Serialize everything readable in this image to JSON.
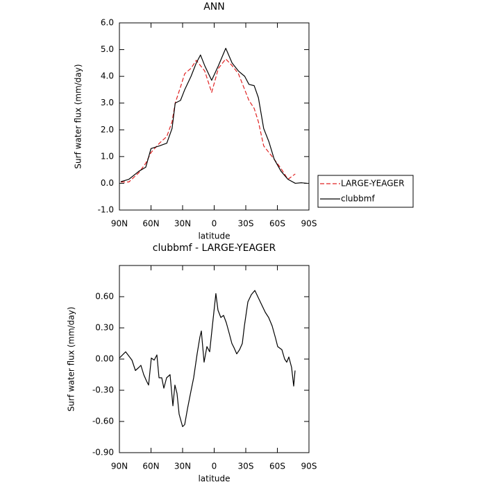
{
  "chart_data": [
    {
      "type": "line",
      "title": "ANN",
      "xlabel": "latitude",
      "ylabel": "Surf water flux (mm/day)",
      "x": [
        88.7,
        81,
        71.5,
        65,
        60,
        52,
        45,
        40,
        37,
        32,
        28,
        22,
        17,
        13,
        9,
        2.4,
        -4,
        -11,
        -17,
        -23,
        -29,
        -33,
        -38,
        -42,
        -47,
        -52,
        -57,
        -63.5,
        -70,
        -77,
        -83,
        -88
      ],
      "series": [
        {
          "name": "LARGE-YEAGER",
          "color": "#e02020",
          "linestyle": "dashed",
          "values": [
            0.05,
            0.05,
            0.4,
            0.75,
            1.15,
            1.5,
            1.75,
            2.3,
            3.0,
            3.6,
            4.1,
            4.3,
            4.6,
            4.4,
            4.2,
            3.4,
            4.3,
            4.65,
            4.4,
            4.1,
            3.5,
            3.1,
            2.8,
            2.3,
            1.4,
            1.15,
            0.9,
            0.55,
            0.15,
            0.35,
            null,
            null
          ]
        },
        {
          "name": "clubbmf",
          "color": "#000000",
          "linestyle": "solid",
          "values": [
            0.06,
            0.15,
            0.45,
            0.6,
            1.3,
            1.4,
            1.5,
            2.05,
            3.0,
            3.1,
            3.5,
            4.0,
            4.5,
            4.8,
            4.4,
            3.85,
            4.4,
            5.05,
            4.5,
            4.2,
            4.0,
            3.7,
            3.65,
            3.2,
            2.05,
            1.55,
            0.9,
            0.45,
            0.15,
            0.0,
            0.02,
            0.0
          ]
        }
      ],
      "xlim": [
        90,
        -90
      ],
      "xticks": [
        {
          "value": 90,
          "label": "90N"
        },
        {
          "value": 60,
          "label": "60N"
        },
        {
          "value": 30,
          "label": "30N"
        },
        0,
        {
          "value": -30,
          "label": "30S"
        },
        {
          "value": -60,
          "label": "60S"
        },
        {
          "value": -90,
          "label": "90S"
        }
      ],
      "ylim": [
        -1,
        6
      ],
      "yticks": [
        {
          "value": -1,
          "label": "-1.0"
        },
        {
          "value": 0,
          "label": "0.0"
        },
        {
          "value": 1,
          "label": "1.0"
        },
        {
          "value": 2,
          "label": "2.0"
        },
        {
          "value": 3,
          "label": "3.0"
        },
        {
          "value": 4,
          "label": "4.0"
        },
        {
          "value": 5,
          "label": "5.0"
        },
        {
          "value": 6,
          "label": "6.0"
        }
      ],
      "legend": "right"
    },
    {
      "type": "line",
      "title": "clubbmf - LARGE-YEAGER",
      "xlabel": "latitude",
      "ylabel": "Surf water flux (mm/day)",
      "x": [
        90,
        84.1,
        78.1,
        74.8,
        71.5,
        69.6,
        66.9,
        64.3,
        62.3,
        59.7,
        57.0,
        54.4,
        52.4,
        49.8,
        47.8,
        45.2,
        41.9,
        39.2,
        37.3,
        35.3,
        33.3,
        30.0,
        28.0,
        25.4,
        22.1,
        19.5,
        16.2,
        13.6,
        12.2,
        9.6,
        6.9,
        4.3,
        1.7,
        -1.6,
        -3.6,
        -6.3,
        -8.9,
        -11.5,
        -14.2,
        -16.8,
        -18.8,
        -21.4,
        -24.1,
        -26.7,
        -28.7,
        -32.0,
        -35.3,
        -38.6,
        -41.9,
        -45.2,
        -48.5,
        -51.7,
        -55.0,
        -58.3,
        -60.3,
        -64.3,
        -66.9,
        -68.9,
        -70.9,
        -73.5,
        -75.5,
        -76.8
      ],
      "series": [
        {
          "name": "clubbmf - LARGE-YEAGER",
          "color": "#000000",
          "linestyle": "solid",
          "values": [
            0.01,
            0.07,
            -0.01,
            -0.11,
            -0.08,
            -0.06,
            -0.15,
            -0.21,
            -0.25,
            0.01,
            -0.01,
            0.04,
            -0.18,
            -0.18,
            -0.28,
            -0.18,
            -0.15,
            -0.45,
            -0.25,
            -0.33,
            -0.53,
            -0.65,
            -0.63,
            -0.48,
            -0.31,
            -0.18,
            0.05,
            0.21,
            0.27,
            -0.03,
            0.12,
            0.07,
            0.32,
            0.63,
            0.47,
            0.4,
            0.42,
            0.35,
            0.25,
            0.15,
            0.11,
            0.05,
            0.09,
            0.15,
            0.32,
            0.55,
            0.62,
            0.66,
            0.59,
            0.52,
            0.45,
            0.4,
            0.32,
            0.2,
            0.12,
            0.09,
            0.0,
            -0.03,
            0.02,
            -0.08,
            -0.26,
            -0.11
          ]
        }
      ],
      "xlim": [
        90,
        -90
      ],
      "xticks": [
        {
          "value": 90,
          "label": "90N"
        },
        {
          "value": 60,
          "label": "60N"
        },
        {
          "value": 30,
          "label": "30N"
        },
        0,
        {
          "value": -30,
          "label": "30S"
        },
        {
          "value": -60,
          "label": "60S"
        },
        {
          "value": -90,
          "label": "90S"
        }
      ],
      "ylim": [
        -0.9,
        0.9
      ],
      "yticks": [
        {
          "value": -0.9,
          "label": "-0.90"
        },
        {
          "value": -0.6,
          "label": "-0.60"
        },
        {
          "value": -0.3,
          "label": "-0.30"
        },
        {
          "value": 0,
          "label": "0.00"
        },
        {
          "value": 0.3,
          "label": "0.30"
        },
        {
          "value": 0.6,
          "label": "0.60"
        }
      ]
    }
  ]
}
